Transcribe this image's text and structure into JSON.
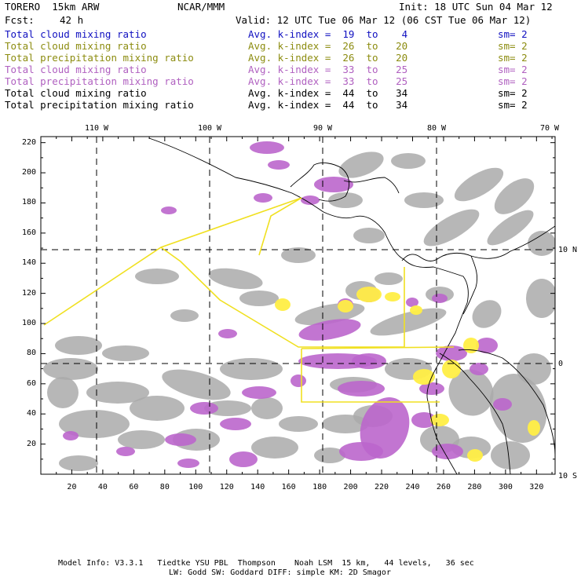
{
  "header": {
    "model": "TORERO  15km ARW",
    "org": "NCAR/MMM",
    "init": "Init: 18 UTC Sun 04 Mar 12",
    "fcst_label": "Fcst:",
    "fcst_value": "42 h",
    "valid": "Valid: 12 UTC Tue 06 Mar 12 (06 CST Tue 06 Mar 12)"
  },
  "legend": [
    {
      "field": "Total cloud mixing ratio",
      "kindex": "Avg. k-index =  19  to    4",
      "sm": "sm= 2",
      "color": "#1010c0"
    },
    {
      "field": "Total cloud mixing ratio",
      "kindex": "Avg. k-index =  26  to   20",
      "sm": "sm= 2",
      "color": "#8c8c10"
    },
    {
      "field": "Total precipitation mixing ratio",
      "kindex": "Avg. k-index =  26  to   20",
      "sm": "sm= 2",
      "color": "#8c8c10"
    },
    {
      "field": "Total cloud mixing ratio",
      "kindex": "Avg. k-index =  33  to   25",
      "sm": "sm= 2",
      "color": "#b060c0"
    },
    {
      "field": "Total precipitation mixing ratio",
      "kindex": "Avg. k-index =  33  to   25",
      "sm": "sm= 2",
      "color": "#b060c0"
    },
    {
      "field": "Total cloud mixing ratio",
      "kindex": "Avg. k-index =  44  to   34",
      "sm": "sm= 2",
      "color": "#000000"
    },
    {
      "field": "Total precipitation mixing ratio",
      "kindex": "Avg. k-index =  44  to   34",
      "sm": "sm= 2",
      "color": "#000000"
    }
  ],
  "map": {
    "lon_labels": [
      "110 W",
      "100 W",
      "90 W",
      "80 W",
      "70 W"
    ],
    "lat_labels": [
      "10 N",
      "0",
      "10 S"
    ],
    "x_ticks": [
      "20",
      "40",
      "60",
      "80",
      "100",
      "120",
      "140",
      "160",
      "180",
      "200",
      "220",
      "240",
      "260",
      "280",
      "300",
      "320"
    ],
    "y_ticks": [
      "220",
      "200",
      "180",
      "160",
      "140",
      "120",
      "100",
      "80",
      "60",
      "40",
      "20"
    ],
    "colors": {
      "cloud": "#aaaaaa",
      "precip": "#bb66cc",
      "yellow": "#ffee44",
      "route": "#f0e020"
    }
  },
  "footer": {
    "line1": "Model Info: V3.3.1   Tiedtke YSU PBL  Thompson    Noah LSM  15 km,   44 levels,   36 sec",
    "line2": "LW: Godd SW: Goddard DIFF: simple KM: 2D Smagor"
  }
}
